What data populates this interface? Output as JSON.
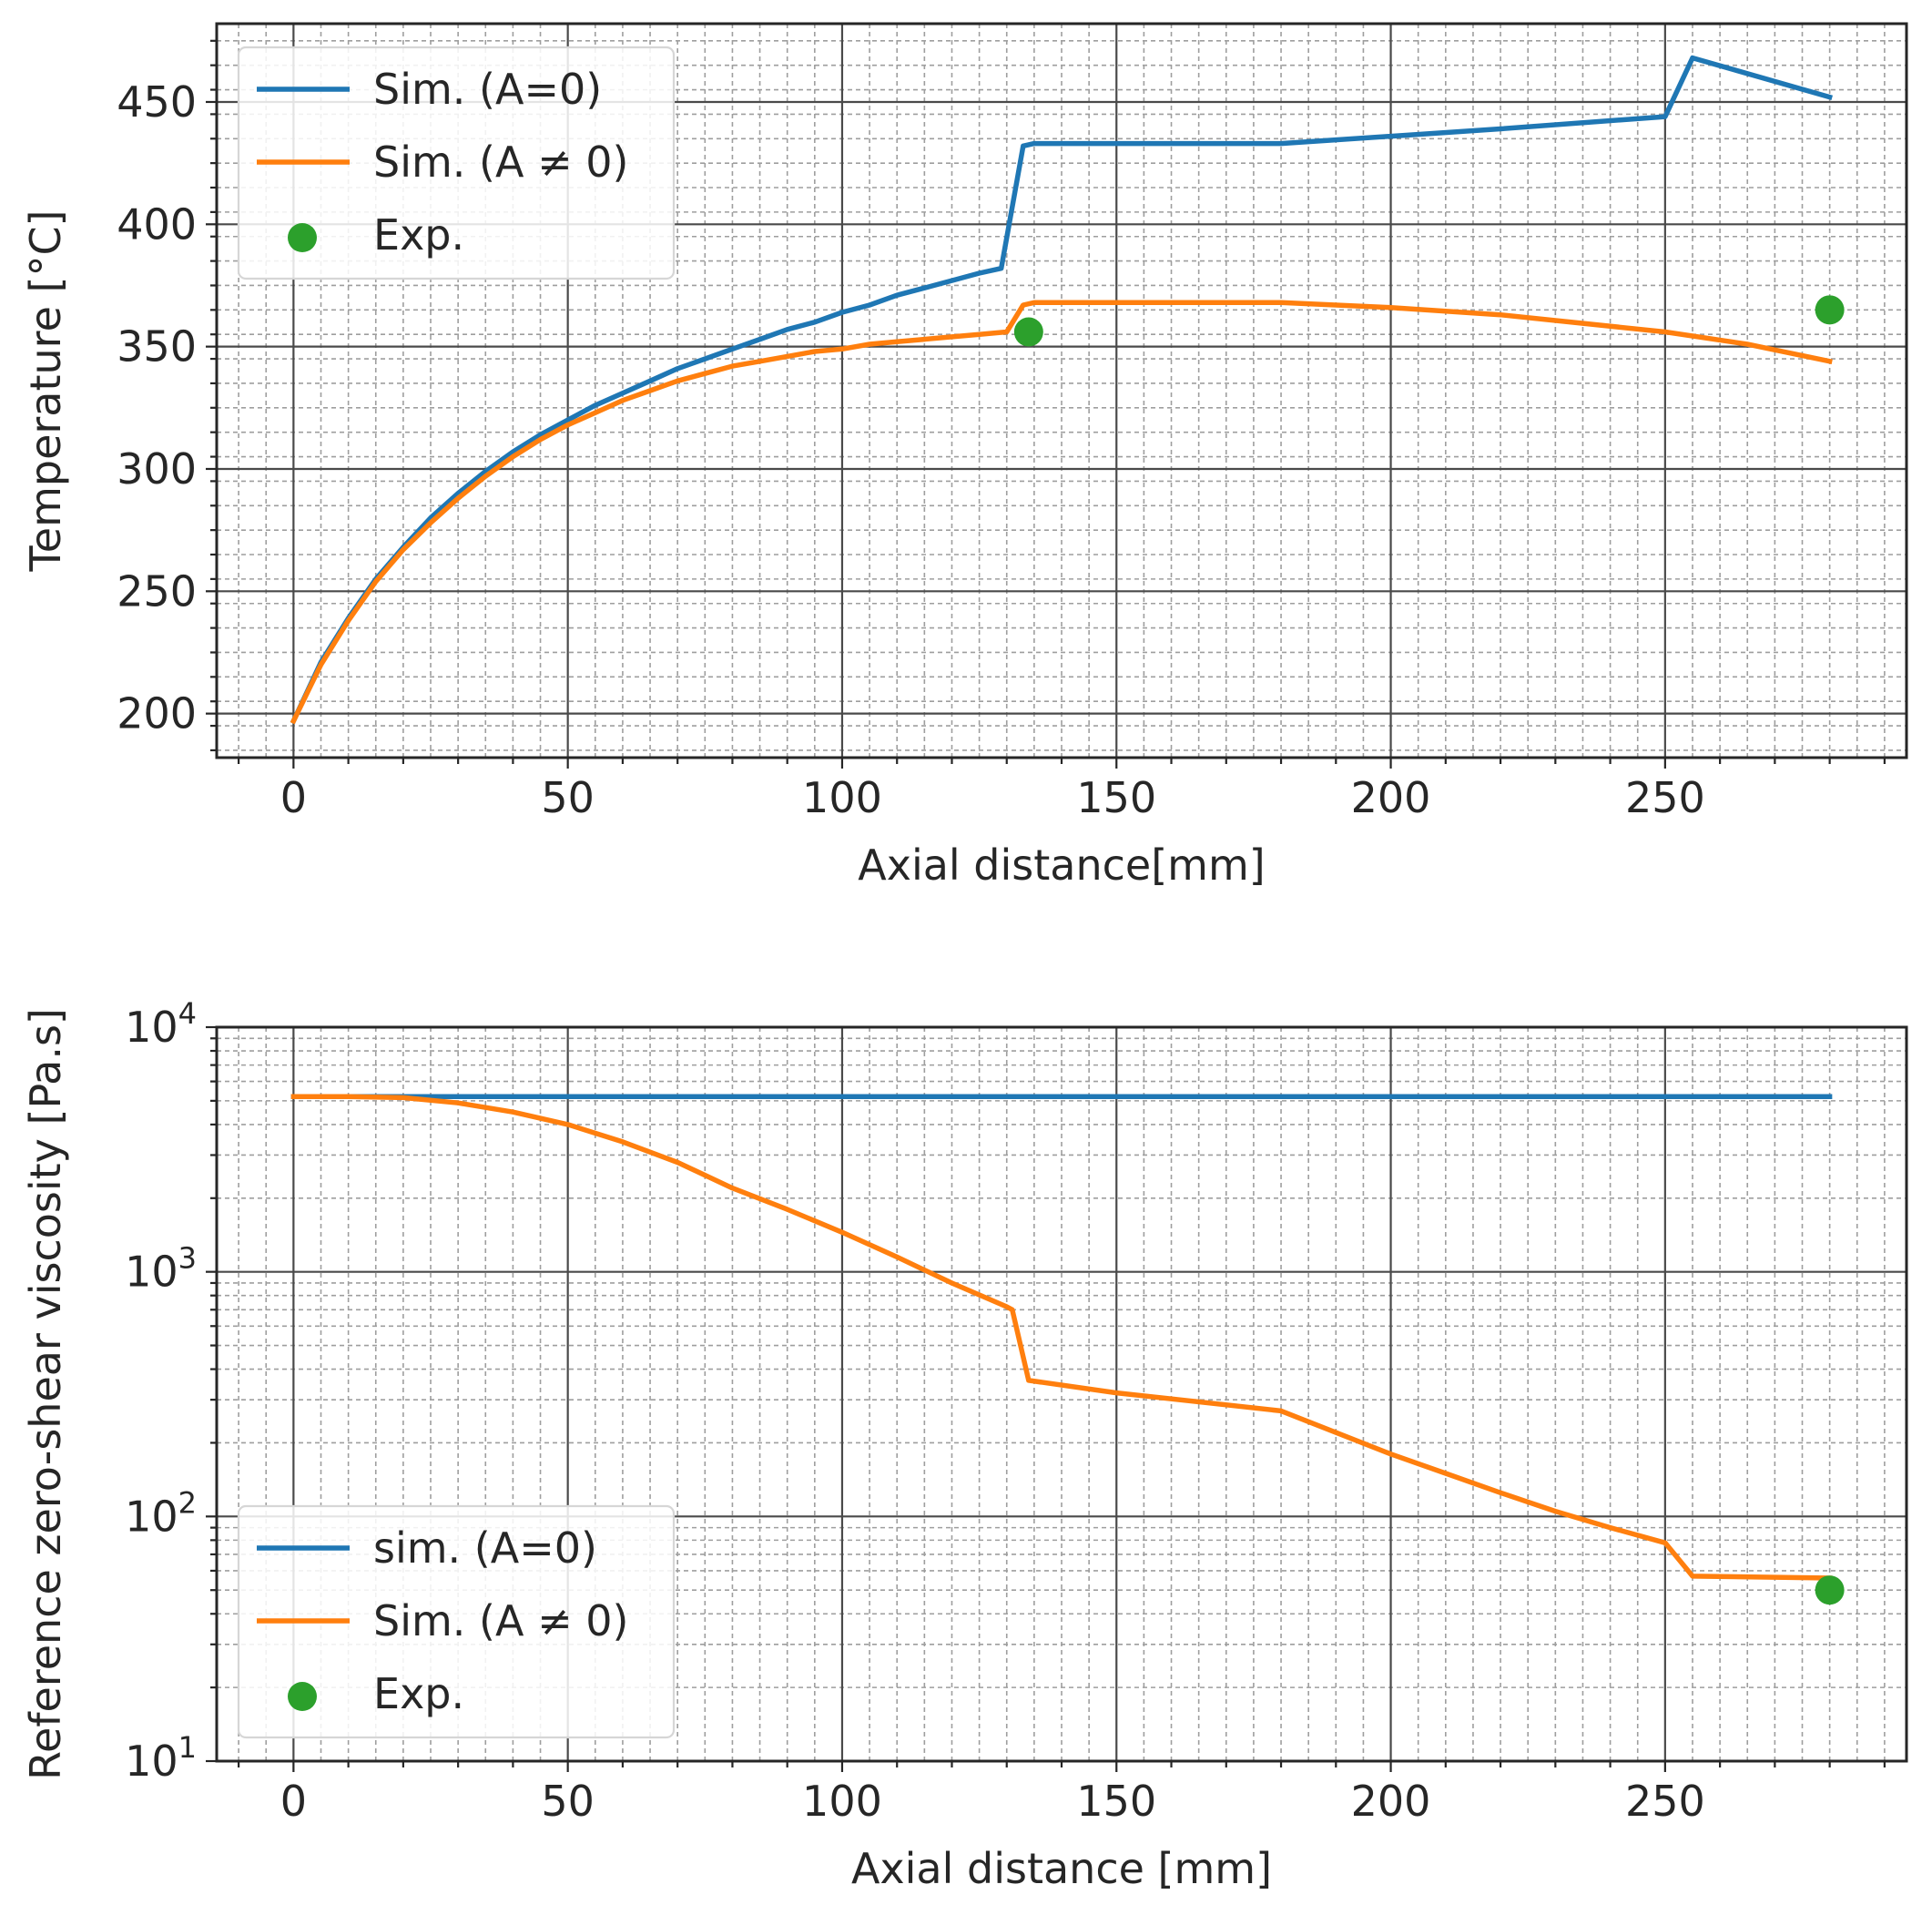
{
  "chart_data": [
    {
      "type": "line",
      "xlabel": "Axial distance[mm]",
      "ylabel": "Temperature [°C]",
      "xlim": [
        -14,
        294
      ],
      "ylim": [
        182,
        482
      ],
      "yscale": "linear",
      "xticks": [
        0,
        50,
        100,
        150,
        200,
        250
      ],
      "xtick_labels": [
        "0",
        "50",
        "100",
        "150",
        "200",
        "250"
      ],
      "yticks": [
        200,
        250,
        300,
        350,
        400,
        450
      ],
      "ytick_labels": [
        "200",
        "250",
        "300",
        "350",
        "400",
        "450"
      ],
      "grid": true,
      "legend_position": "upper left",
      "legend": [
        {
          "label": "Sim. (A=0)",
          "kind": "line",
          "series": "sim_a0"
        },
        {
          "label": "Sim. (A ≠ 0)",
          "kind": "line",
          "series": "sim_a_ne0",
          "math": true
        },
        {
          "label": "Exp.",
          "kind": "marker",
          "series": "exp"
        }
      ],
      "series": [
        {
          "id": "sim_a0",
          "name": "Sim. (A=0)",
          "color": "#1f77b4",
          "x": [
            0,
            5,
            10,
            15,
            20,
            25,
            30,
            35,
            40,
            45,
            50,
            55,
            60,
            65,
            70,
            75,
            80,
            85,
            90,
            95,
            100,
            105,
            110,
            115,
            120,
            125,
            129,
            133,
            135,
            150,
            180,
            200,
            220,
            250,
            255,
            280
          ],
          "y": [
            197,
            221,
            239,
            255,
            268,
            280,
            290,
            299,
            307,
            314,
            320,
            326,
            331,
            336,
            341,
            345,
            349,
            353,
            357,
            360,
            364,
            367,
            371,
            374,
            377,
            380,
            382,
            432,
            433,
            433,
            433,
            436,
            439,
            444,
            468,
            452
          ]
        },
        {
          "id": "sim_a_ne0",
          "name": "Sim. (A ≠ 0)",
          "color": "#ff7f0e",
          "x": [
            0,
            5,
            10,
            15,
            20,
            25,
            30,
            35,
            40,
            45,
            50,
            55,
            60,
            65,
            70,
            75,
            80,
            85,
            90,
            95,
            100,
            105,
            110,
            115,
            120,
            125,
            130,
            133,
            135,
            150,
            180,
            200,
            220,
            250,
            265,
            280
          ],
          "y": [
            197,
            220,
            238,
            254,
            267,
            278,
            288,
            297,
            305,
            312,
            318,
            323,
            328,
            332,
            336,
            339,
            342,
            344,
            346,
            348,
            349,
            351,
            352,
            353,
            354,
            355,
            356,
            367,
            368,
            368,
            368,
            366,
            363,
            356,
            351,
            344
          ]
        },
        {
          "id": "exp",
          "name": "Exp.",
          "color": "#2ca02c",
          "style": "markers",
          "x": [
            134,
            280
          ],
          "y": [
            356,
            365
          ]
        }
      ]
    },
    {
      "type": "line",
      "xlabel": "Axial distance [mm]",
      "ylabel": "Reference zero-shear viscosity [Pa.s]",
      "xlim": [
        -14,
        294
      ],
      "ylim": [
        10,
        10000
      ],
      "yscale": "log",
      "xticks": [
        0,
        50,
        100,
        150,
        200,
        250
      ],
      "xtick_labels": [
        "0",
        "50",
        "100",
        "150",
        "200",
        "250"
      ],
      "yticks": [
        10,
        100,
        1000,
        10000
      ],
      "ytick_labels": [
        {
          "base": "10",
          "exp": "1"
        },
        {
          "base": "10",
          "exp": "2"
        },
        {
          "base": "10",
          "exp": "3"
        },
        {
          "base": "10",
          "exp": "4"
        }
      ],
      "grid": true,
      "legend_position": "lower left",
      "legend": [
        {
          "label": "sim. (A=0)",
          "kind": "line",
          "series": "sim_a0"
        },
        {
          "label": "Sim. (A ≠ 0)",
          "kind": "line",
          "series": "sim_a_ne0",
          "math": true
        },
        {
          "label": "Exp.",
          "kind": "marker",
          "series": "exp"
        }
      ],
      "series": [
        {
          "id": "sim_a0",
          "name": "sim. (A=0)",
          "color": "#1f77b4",
          "x": [
            0,
            280
          ],
          "y": [
            5200,
            5200
          ]
        },
        {
          "id": "sim_a_ne0",
          "name": "Sim. (A ≠ 0)",
          "color": "#ff7f0e",
          "x": [
            0,
            10,
            20,
            30,
            40,
            50,
            60,
            70,
            80,
            90,
            100,
            110,
            120,
            130,
            131,
            134,
            150,
            180,
            200,
            210,
            220,
            230,
            240,
            250,
            255,
            280
          ],
          "y": [
            5200,
            5200,
            5150,
            4900,
            4500,
            4000,
            3400,
            2800,
            2200,
            1800,
            1450,
            1150,
            900,
            720,
            700,
            360,
            320,
            270,
            180,
            150,
            125,
            105,
            90,
            78,
            57,
            56
          ]
        },
        {
          "id": "exp",
          "name": "Exp.",
          "color": "#2ca02c",
          "style": "markers",
          "x": [
            280
          ],
          "y": [
            50
          ]
        }
      ]
    }
  ]
}
